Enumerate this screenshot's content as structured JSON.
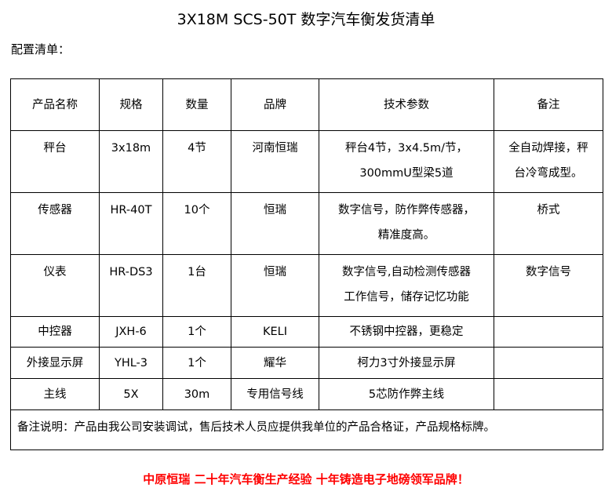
{
  "title": "3X18M SCS-50T 数字汽车衡发货清单",
  "subtitle": "配置清单：",
  "headers": [
    "产品名称",
    "规格",
    "数量",
    "品牌",
    "技术参数",
    "备注"
  ],
  "rows": [
    [
      "秤台",
      "3x18m",
      "4节",
      "河南恒瑞",
      "秤台4节，3x4.5m/节，\n300mmU型梁5道",
      "全自动焊接，秤\n台冷弯成型。"
    ],
    [
      "传感器",
      "HR-40T",
      "10个",
      "恒瑞",
      "数字信号，防作弊传感器，\n精准度高。",
      "桥式"
    ],
    [
      "仪表",
      "HR-DS3",
      "1台",
      "恒瑞",
      "数字信号,自动检测传感器\n工作信号，储存记忆功能",
      "数字信号"
    ],
    [
      "中控器",
      "JXH-6",
      "1个",
      "KELI",
      "不锈钢中控器，更稳定",
      ""
    ],
    [
      "外接显示屏",
      "YHL-3",
      "1个",
      "耀华",
      "柯力3寸外接显示屏",
      ""
    ],
    [
      "主线",
      "5X",
      "30m",
      "专用信号线",
      "5芯防作弊主线",
      ""
    ]
  ],
  "note": "备注说明：产品由我公司安装调试，售后技术人员应提供我单位的产品合格证，产品规格标牌。",
  "footer": "中原恒瑞  二十年汽车衡生产经验  十年铸造电子地磅领军品牌！",
  "colors": {
    "footer": "#ff0000"
  }
}
